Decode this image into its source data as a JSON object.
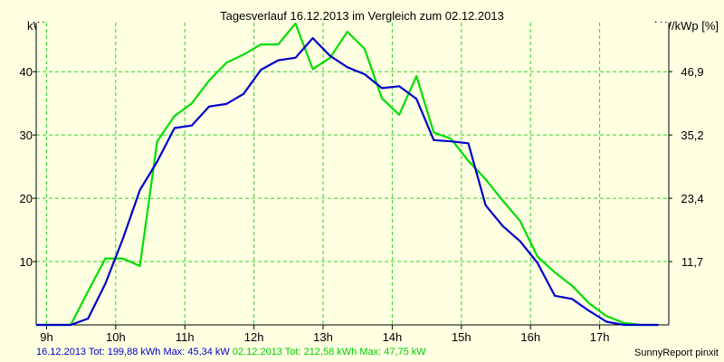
{
  "chart_data": {
    "type": "line",
    "title": "Tagesverlauf 16.12.2013 im Vergleich zum 02.12.2013",
    "ylabel": "kW",
    "y2label": "kW/kWp [%]",
    "x_ticks": [
      "9h",
      "10h",
      "11h",
      "12h",
      "13h",
      "14h",
      "15h",
      "16h",
      "17h"
    ],
    "y_ticks": [
      10,
      20,
      30,
      40
    ],
    "y2_ticks": [
      "11,7",
      "23,4",
      "35,2",
      "46,9"
    ],
    "xlim": [
      8.85,
      18.0
    ],
    "ylim": [
      0,
      47.75
    ],
    "grid": true,
    "series": [
      {
        "name": "16.12.2013",
        "color": "#0000cc",
        "x": [
          8.85,
          9.35,
          9.6,
          9.85,
          10.1,
          10.35,
          10.6,
          10.85,
          11.1,
          11.35,
          11.6,
          11.85,
          12.1,
          12.35,
          12.6,
          12.85,
          13.1,
          13.35,
          13.6,
          13.85,
          14.1,
          14.35,
          14.6,
          14.85,
          15.1,
          15.35,
          15.6,
          15.85,
          16.1,
          16.35,
          16.6,
          16.85,
          17.1,
          17.35,
          17.6,
          17.85
        ],
        "values": [
          0,
          0,
          1.0,
          6.5,
          13.5,
          21.3,
          25.8,
          31.1,
          31.5,
          34.5,
          34.9,
          36.5,
          40.3,
          41.8,
          42.2,
          45.3,
          42.5,
          40.7,
          39.6,
          37.4,
          37.7,
          35.7,
          29.2,
          29.0,
          28.7,
          18.9,
          15.6,
          13.2,
          9.8,
          4.6,
          4.1,
          2.2,
          0.5,
          0,
          0,
          0
        ]
      },
      {
        "name": "02.12.2013",
        "color": "#00dd00",
        "x": [
          8.85,
          9.35,
          9.6,
          9.85,
          10.1,
          10.35,
          10.6,
          10.85,
          11.1,
          11.35,
          11.6,
          11.85,
          12.1,
          12.35,
          12.6,
          12.85,
          13.1,
          13.35,
          13.6,
          13.85,
          14.1,
          14.35,
          14.6,
          14.85,
          15.1,
          15.35,
          15.6,
          15.85,
          16.1,
          16.35,
          16.6,
          16.85,
          17.1,
          17.35,
          17.6,
          17.85
        ],
        "values": [
          0,
          0,
          5.3,
          10.5,
          10.5,
          9.3,
          29.0,
          33.0,
          35.0,
          38.6,
          41.4,
          42.7,
          44.3,
          44.3,
          47.6,
          40.4,
          42.2,
          46.3,
          43.6,
          35.8,
          33.2,
          39.3,
          30.4,
          29.4,
          25.9,
          23.0,
          19.6,
          16.4,
          10.8,
          8.3,
          6.2,
          3.4,
          1.4,
          0.3,
          0,
          0
        ]
      }
    ],
    "footer": {
      "series1_text": "16.12.2013 Tot: 199,88 kWh Max: 45,34 kW",
      "series2_text": "02.12.2013 Tot: 212,58 kWh Max: 47,75 kW",
      "brand": "SunnyReport pinxit"
    }
  }
}
